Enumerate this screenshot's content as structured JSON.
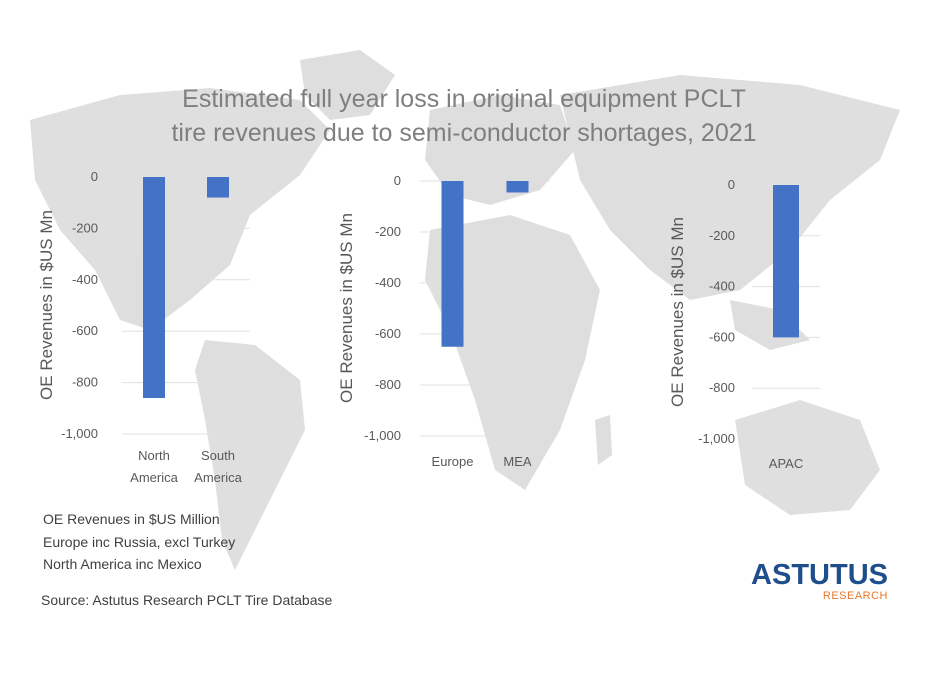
{
  "title": {
    "line1": "Estimated full year loss in original equipment PCLT",
    "line2": "tire revenues due to semi-conductor shortages, 2021"
  },
  "colors": {
    "bar": "#4472c4",
    "grid": "#e0e0e0",
    "map": "#d9d9d9",
    "title": "#7f7f7f",
    "logo_primary": "#1f4e8c",
    "logo_accent": "#e8762c"
  },
  "chart_data": [
    {
      "type": "bar",
      "ylabel": "OE Revenues in $US Mn",
      "ylim": [
        -1000,
        0
      ],
      "yticks": [
        "0",
        "-200",
        "-400",
        "-600",
        "-800",
        "-1,000"
      ],
      "categories": [
        [
          "North",
          "America"
        ],
        [
          "South",
          "America"
        ]
      ],
      "values": [
        -860,
        -80
      ]
    },
    {
      "type": "bar",
      "ylabel": "OE Revenues in $US Mn",
      "ylim": [
        -1000,
        0
      ],
      "yticks": [
        "0",
        "-200",
        "-400",
        "-600",
        "-800",
        "-1,000"
      ],
      "categories": [
        [
          "Europe"
        ],
        [
          "MEA"
        ]
      ],
      "values": [
        -650,
        -45
      ]
    },
    {
      "type": "bar",
      "ylabel": "OE Revenues in $US Mn",
      "ylim": [
        -1000,
        0
      ],
      "yticks": [
        "0",
        "-200",
        "-400",
        "-600",
        "-800",
        "-1,000"
      ],
      "categories": [
        [
          "APAC"
        ]
      ],
      "values": [
        -600
      ]
    }
  ],
  "notes": [
    "OE Revenues in $US Million",
    "Europe inc Russia, excl Turkey",
    "North America inc Mexico"
  ],
  "source": "Source: Astutus Research PCLT Tire Database",
  "logo": {
    "name": "ASTUTUS",
    "sub": "RESEARCH"
  }
}
